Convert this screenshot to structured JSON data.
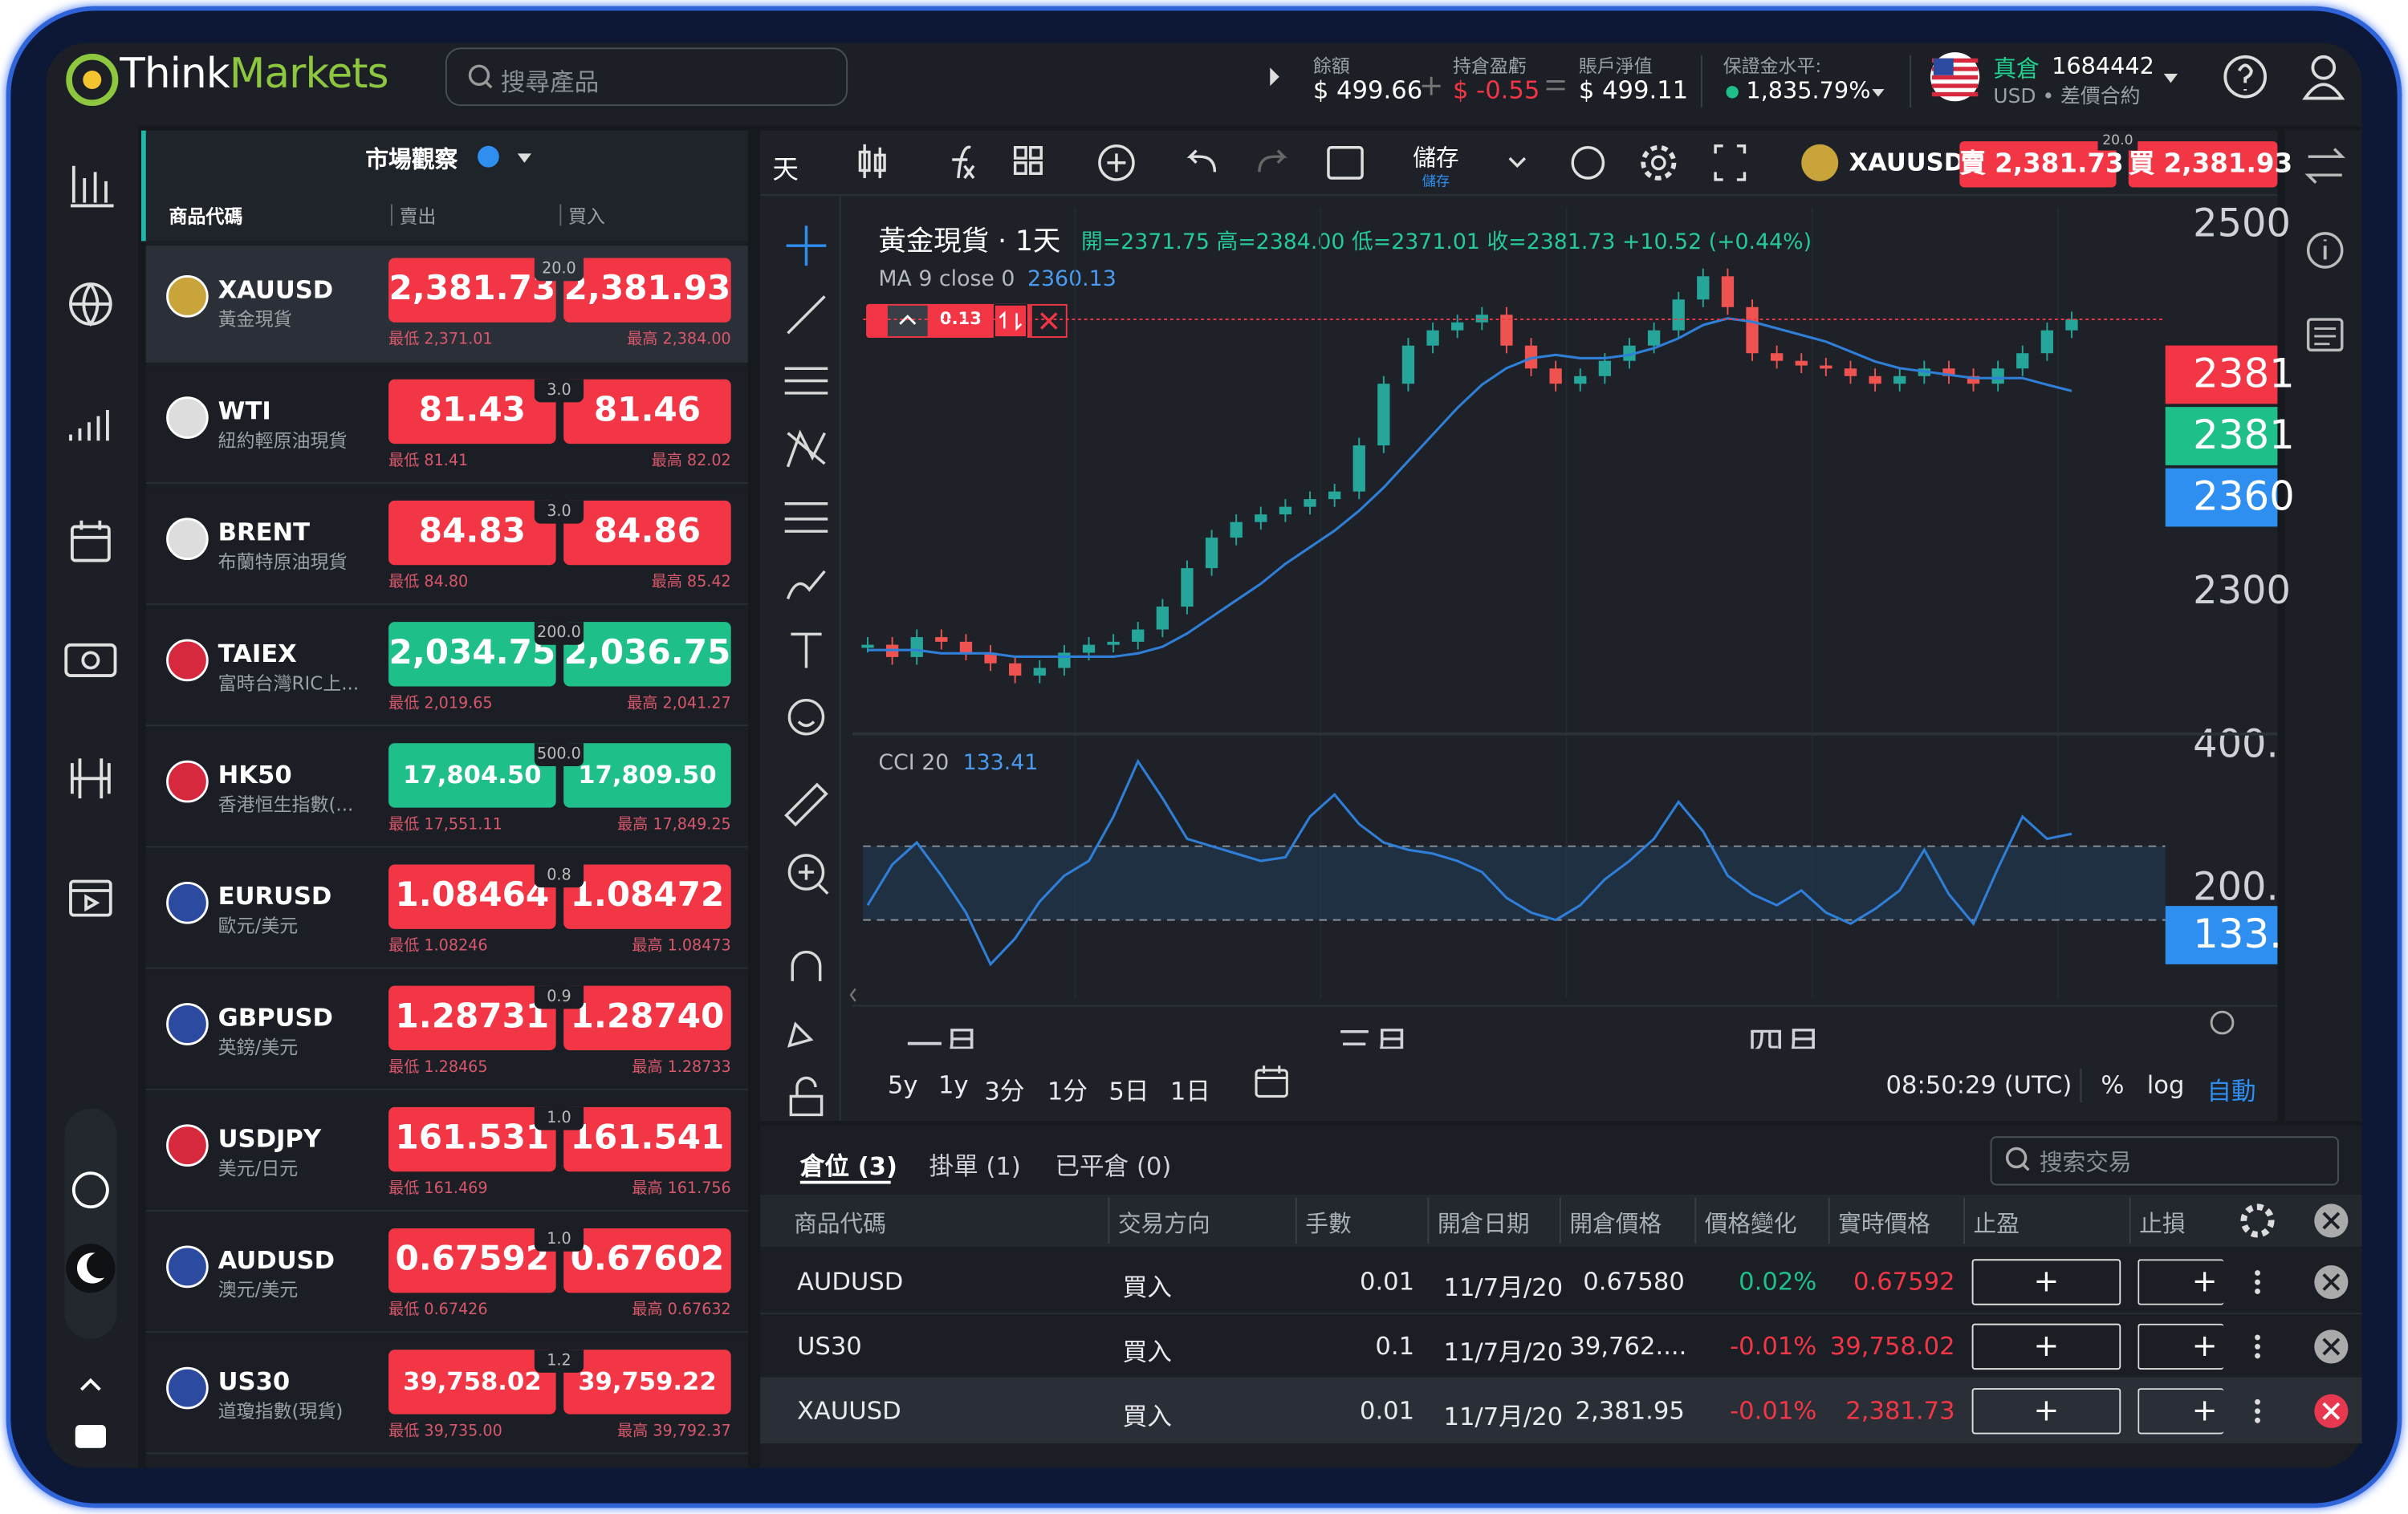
{
  "header": {
    "logo_think": "Think",
    "logo_markets": "Markets",
    "search": "搜尋產品",
    "balance_label": "餘額",
    "balance": "$ 499.66",
    "pnl_label": "持倉盈虧",
    "pnl": "$ -0.55",
    "equity_label": "賬戶淨值",
    "equity": "$ 499.11",
    "margin_label": "保證金水平:",
    "margin": "1,835.79%",
    "account_type": "真倉",
    "account_id": "1684442",
    "account_sub": "USD • 差價合約"
  },
  "watchlist": {
    "title": "市場觀察",
    "columns": [
      "商品代碼",
      "賣出",
      "買入"
    ],
    "rows": [
      {
        "symbol": "XAUUSD",
        "name": "黃金現貨",
        "sell": "2,381.73",
        "spread": "20.0",
        "buy": "2,381.93",
        "low": "最低 2,371.01",
        "high": "最高 2,384.00",
        "color": "#f23645"
      },
      {
        "symbol": "WTI",
        "name": "紐約輕原油現貨",
        "sell": "81.43",
        "spread": "3.0",
        "buy": "81.46",
        "low": "最低 81.41",
        "high": "最高 82.02",
        "color": "#f23645"
      },
      {
        "symbol": "BRENT",
        "name": "布蘭特原油現貨",
        "sell": "84.83",
        "spread": "3.0",
        "buy": "84.86",
        "low": "最低 84.80",
        "high": "最高 85.42",
        "color": "#f23645"
      },
      {
        "symbol": "TAIEX",
        "name": "富時台灣RIC上...",
        "sell": "2,034.75",
        "spread": "200.0",
        "buy": "2,036.75",
        "low": "最低 2,019.65",
        "high": "最高 2,041.27",
        "color": "#1fbf8a"
      },
      {
        "symbol": "HK50",
        "name": "香港恒生指數(...",
        "sell": "17,804.50",
        "spread": "500.0",
        "buy": "17,809.50",
        "low": "最低 17,551.11",
        "high": "最高 17,849.25",
        "color": "#1fbf8a"
      },
      {
        "symbol": "EURUSD",
        "name": "歐元/美元",
        "sell": "1.08464",
        "spread": "0.8",
        "buy": "1.08472",
        "low": "最低 1.08246",
        "high": "最高 1.08473",
        "color": "#f23645"
      },
      {
        "symbol": "GBPUSD",
        "name": "英鎊/美元",
        "sell": "1.28731",
        "spread": "0.9",
        "buy": "1.28740",
        "low": "最低 1.28465",
        "high": "最高 1.28733",
        "color": "#f23645"
      },
      {
        "symbol": "USDJPY",
        "name": "美元/日元",
        "sell": "161.531",
        "spread": "1.0",
        "buy": "161.541",
        "low": "最低 161.469",
        "high": "最高 161.756",
        "color": "#f23645"
      },
      {
        "symbol": "AUDUSD",
        "name": "澳元/美元",
        "sell": "0.67592",
        "spread": "1.0",
        "buy": "0.67602",
        "low": "最低 0.67426",
        "high": "最高 0.67632",
        "color": "#f23645"
      },
      {
        "symbol": "US30",
        "name": "道瓊指數(現貨)",
        "sell": "39,758.02",
        "spread": "1.2",
        "buy": "39,759.22",
        "low": "最低 39,735.00",
        "high": "最高 39,792.37",
        "color": "#f23645"
      }
    ]
  },
  "chart": {
    "toolbar": {
      "interval": "天",
      "save": "儲存",
      "save_sub": "儲存",
      "symbol": "XAUUSD",
      "sell": "賣 2,381.73",
      "spread": "20.0",
      "buy": "買 2,381.93"
    },
    "legend": {
      "title": "黃金現貨 · 1天",
      "ohlc": "開=2371.75 高=2384.00 低=2371.01 收=2381.73 +10.52 (+0.44%)",
      "ma_label": "MA 9 close 0",
      "ma_value": "2360.13",
      "cci_label": "CCI 20",
      "cci_value": "133.41"
    },
    "order_qty": "0.13",
    "price_axis": [
      "2500",
      "2300"
    ],
    "price_tags": [
      {
        "label": "2381",
        "color": "#f23645"
      },
      {
        "label": "2381",
        "color": "#1fbf8a"
      },
      {
        "label": "2360",
        "color": "#2f8ff0"
      }
    ],
    "cci_axis": [
      "400.",
      "200."
    ],
    "cci_tag": "133.",
    "x_labels": [
      "一月",
      "三月",
      "四月"
    ],
    "timeframes": [
      "5y",
      "1y",
      "3分",
      "1分",
      "5日",
      "1日"
    ],
    "clock": "08:50:29 (UTC)",
    "scale_options": [
      "%",
      "log",
      "自動"
    ],
    "price": {
      "type": "candlestick",
      "ylim": [
        2260.4,
        2415.5
      ],
      "color_up": "#26a69a",
      "color_down": "#ef5350",
      "values": [
        2283.6,
        2279.9,
        2285.9,
        2284.5,
        2281.2,
        2278.0,
        2274.3,
        2276.6,
        2281.2,
        2283.6,
        2284.5,
        2288.2,
        2295.1,
        2306.7,
        2315.9,
        2320.6,
        2322.9,
        2325.2,
        2327.5,
        2329.8,
        2343.7,
        2362.3,
        2373.8,
        2378.4,
        2380.8,
        2383.1,
        2373.8,
        2366.9,
        2362.3,
        2364.6,
        2369.2,
        2373.8,
        2378.4,
        2387.7,
        2394.7,
        2385.4,
        2371.5,
        2369.2,
        2367.8,
        2366.9,
        2364.6,
        2362.3,
        2364.6,
        2366.9,
        2364.6,
        2362.3,
        2366.9,
        2371.5,
        2378.4,
        2381.73
      ]
    },
    "ma": {
      "type": "line",
      "color": "#2f7fd8",
      "values": [
        2282,
        2282,
        2282,
        2281,
        2281,
        2281,
        2280,
        2280,
        2280,
        2280,
        2280,
        2281,
        2283,
        2287,
        2292,
        2297,
        2302,
        2308,
        2313,
        2318,
        2324,
        2331,
        2339,
        2347,
        2355,
        2362,
        2367,
        2370,
        2371,
        2370,
        2370,
        2371,
        2373,
        2376,
        2380,
        2382,
        2381,
        2379,
        2377,
        2375,
        2372,
        2369,
        2367,
        2366,
        2365,
        2364,
        2364,
        2364,
        2362,
        2360.13
      ]
    },
    "cci": {
      "type": "line",
      "color": "#2f7fd8",
      "ylim": [
        -270,
        375
      ],
      "bands": [
        100,
        -100
      ],
      "values": [
        -60,
        50,
        110,
        20,
        -80,
        -220,
        -150,
        -50,
        20,
        60,
        180,
        330,
        230,
        120,
        100,
        80,
        60,
        70,
        180,
        240,
        160,
        110,
        90,
        80,
        60,
        30,
        -40,
        -80,
        -100,
        -60,
        10,
        60,
        120,
        220,
        140,
        20,
        -30,
        -60,
        -20,
        -80,
        -110,
        -70,
        -20,
        90,
        -30,
        -110,
        40,
        180,
        120,
        133.41
      ]
    }
  },
  "positions": {
    "tabs": [
      "倉位 (3)",
      "掛單 (1)",
      "已平倉 (0)"
    ],
    "search": "搜索交易",
    "columns": [
      "商品代碼",
      "交易方向",
      "手數",
      "開倉日期",
      "開倉價格",
      "價格變化",
      "實時價格",
      "止盈",
      "止損"
    ],
    "add": "+",
    "rows": [
      [
        "AUDUSD",
        "買入",
        "0.01",
        "11/7月/20:",
        "0.67580",
        "0.02%",
        "0.67592"
      ],
      [
        "US30",
        "買入",
        "0.1",
        "11/7月/20:",
        "39,762....",
        "-0.01%",
        "39,758.02"
      ],
      [
        "XAUUSD",
        "買入",
        "0.01",
        "11/7月/20:",
        "2,381.95",
        "-0.01%",
        "2,381.73"
      ]
    ]
  }
}
